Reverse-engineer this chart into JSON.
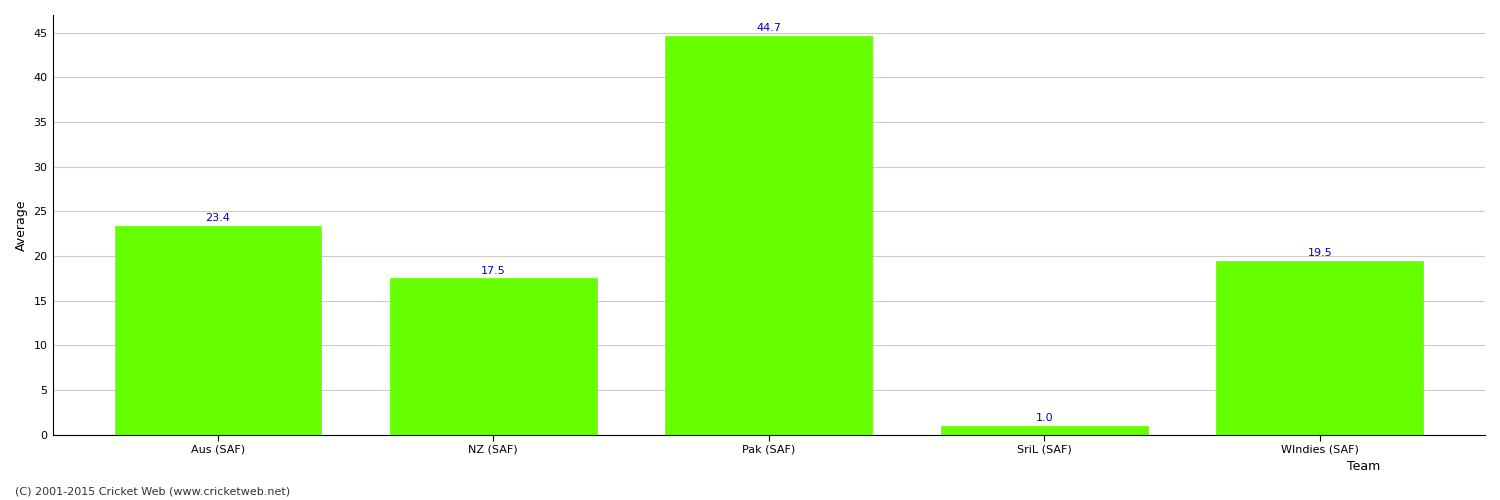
{
  "categories": [
    "Aus (SAF)",
    "NZ (SAF)",
    "Pak (SAF)",
    "SriL (SAF)",
    "WIndies (SAF)"
  ],
  "values": [
    23.4,
    17.5,
    44.7,
    1.0,
    19.5
  ],
  "bar_color": "#66ff00",
  "bar_edge_color": "#66ff00",
  "label_color": "#0000cc",
  "ylabel": "Average",
  "xlabel": "Team",
  "ylim": [
    0,
    47
  ],
  "yticks": [
    0,
    5,
    10,
    15,
    20,
    25,
    30,
    35,
    40,
    45
  ],
  "grid_color": "#cccccc",
  "bg_color": "#ffffff",
  "bar_width": 0.75,
  "figsize": [
    15,
    5
  ],
  "dpi": 100,
  "footnote": "(C) 2001-2015 Cricket Web (www.cricketweb.net)",
  "label_fontsize": 8,
  "axis_label_fontsize": 9,
  "tick_fontsize": 8,
  "footnote_fontsize": 8
}
